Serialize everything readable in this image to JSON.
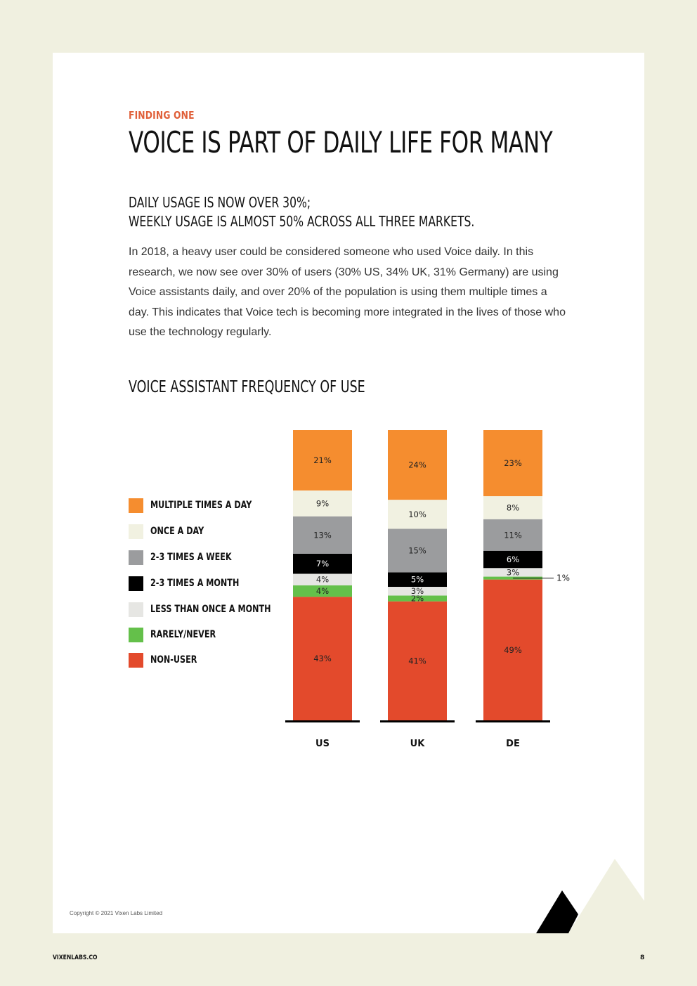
{
  "header": {
    "eyebrow": "FINDING ONE",
    "title": "VOICE IS PART OF DAILY LIFE FOR MANY"
  },
  "subhead": {
    "line1": "DAILY USAGE IS NOW OVER 30%;",
    "line2": "WEEKLY USAGE IS ALMOST 50% ACROSS ALL THREE MARKETS."
  },
  "body_text": "In 2018, a heavy user could be considered someone who used Voice daily. In this research, we now see over 30% of users (30% US, 34% UK, 31% Germany) are using Voice assistants daily, and over 20% of the population is using them multiple times a day. This indicates that Voice tech is becoming more integrated in the lives of those who use the technology regularly.",
  "chart_data": {
    "type": "bar",
    "stacked": true,
    "title": "VOICE ASSISTANT FREQUENCY OF USE",
    "categories": [
      "US",
      "UK",
      "DE"
    ],
    "series": [
      {
        "name": "NON-USER",
        "color": "#e34a2c",
        "values": [
          43,
          41,
          49
        ],
        "labels": [
          "43%",
          "41%",
          "49%"
        ]
      },
      {
        "name": "RARELY/NEVER",
        "color": "#64c04a",
        "values": [
          4,
          2,
          1
        ],
        "labels": [
          "4%",
          "2%",
          "1%"
        ]
      },
      {
        "name": "LESS THAN ONCE A MONTH",
        "color": "#e6e6e3",
        "values": [
          4,
          3,
          3
        ],
        "labels": [
          "4%",
          "3%",
          "3%"
        ]
      },
      {
        "name": "2-3 TIMES A MONTH",
        "color": "#000000",
        "values": [
          7,
          5,
          6
        ],
        "labels": [
          "7%",
          "5%",
          "6%"
        ]
      },
      {
        "name": "2-3 TIMES A WEEK",
        "color": "#9b9c9e",
        "values": [
          13,
          15,
          11
        ],
        "labels": [
          "13%",
          "15%",
          "11%"
        ]
      },
      {
        "name": "ONCE A DAY",
        "color": "#f1f1e1",
        "values": [
          9,
          10,
          8
        ],
        "labels": [
          "9%",
          "10%",
          "8%"
        ]
      },
      {
        "name": "MULTIPLE TIMES A DAY",
        "color": "#f58d2f",
        "values": [
          21,
          24,
          23
        ],
        "labels": [
          "21%",
          "24%",
          "23%"
        ]
      }
    ],
    "legend": {
      "placement": "left",
      "order": [
        "MULTIPLE TIMES A DAY",
        "ONCE A DAY",
        "2-3 TIMES A WEEK",
        "2-3 TIMES A MONTH",
        "LESS THAN ONCE A MONTH",
        "RARELY/NEVER",
        "NON-USER"
      ]
    },
    "grid": false
  },
  "footer": {
    "copyright": "Copyright © 2021 Vixen Labs Limited",
    "site": "VIXENLABS.CO",
    "page_number": "8"
  }
}
